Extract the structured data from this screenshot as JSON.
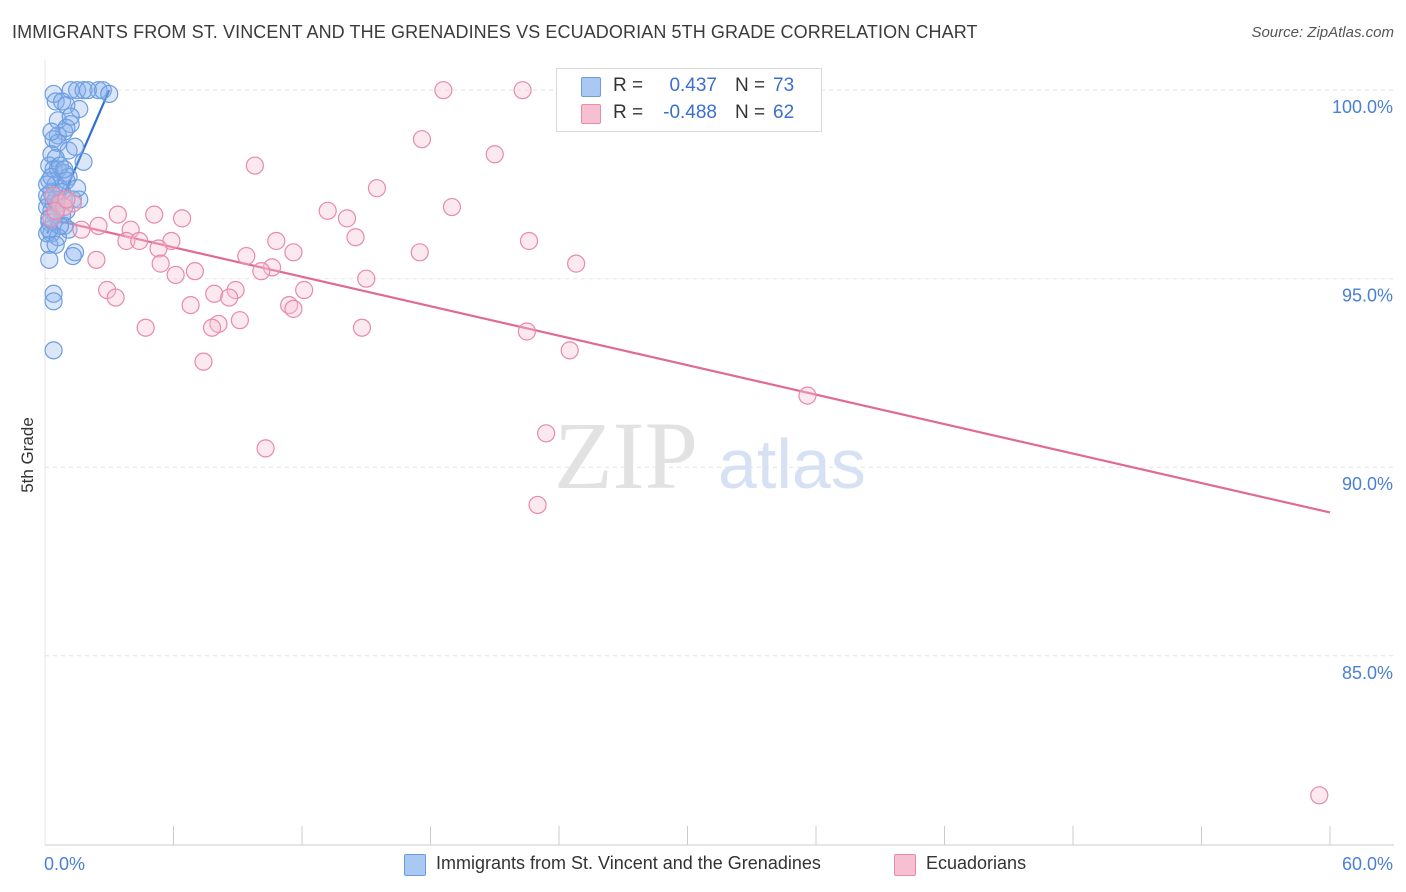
{
  "title": "IMMIGRANTS FROM ST. VINCENT AND THE GRENADINES VS ECUADORIAN 5TH GRADE CORRELATION CHART",
  "source": "Source: ZipAtlas.com",
  "watermark": {
    "zip": "ZIP",
    "atlas": "atlas"
  },
  "legend": {
    "rows": [
      {
        "r_label": "R =",
        "r_value": "0.437",
        "n_label": "N =",
        "n_value": "73",
        "color": "#a9c8f2",
        "border": "#6b9de0"
      },
      {
        "r_label": "R =",
        "r_value": "-0.488",
        "n_label": "N =",
        "n_value": "62",
        "color": "#f7c0d2",
        "border": "#e88aa8"
      }
    ]
  },
  "bottom_legend": [
    {
      "label": "Immigrants from St. Vincent and the Grenadines",
      "color": "#a9c8f2",
      "border": "#6b9de0"
    },
    {
      "label": "Ecuadorians",
      "color": "#f7c0d2",
      "border": "#e88aa8"
    }
  ],
  "chart_data": {
    "type": "scatter",
    "title": "IMMIGRANTS FROM ST. VINCENT AND THE GRENADINES VS ECUADORIAN 5TH GRADE CORRELATION CHART",
    "xlabel": "",
    "ylabel": "5th Grade",
    "xlim": [
      0,
      60
    ],
    "ylim": [
      80.3,
      100.8
    ],
    "x_tick_labels": [
      "0.0%",
      "60.0%"
    ],
    "y_ticks": [
      100,
      95,
      90,
      85
    ],
    "y_tick_labels": [
      "100.0%",
      "95.0%",
      "90.0%",
      "85.0%"
    ],
    "grid": true,
    "series": [
      {
        "name": "Immigrants from St. Vincent and the Grenadines",
        "color": "#6b9de0",
        "fill": "rgba(135,175,235,0.30)",
        "trend": {
          "x": [
            0.1,
            3.0
          ],
          "y": [
            96.2,
            100.0
          ],
          "color": "#2f6fd2"
        },
        "points": [
          [
            0.4,
            99.9
          ],
          [
            1.2,
            100.0
          ],
          [
            1.5,
            100.0
          ],
          [
            1.8,
            100.0
          ],
          [
            2.5,
            100.0
          ],
          [
            2.7,
            100.0
          ],
          [
            3.0,
            99.9
          ],
          [
            0.5,
            99.7
          ],
          [
            0.8,
            99.7
          ],
          [
            1.0,
            99.6
          ],
          [
            1.6,
            99.5
          ],
          [
            0.6,
            99.2
          ],
          [
            1.2,
            99.1
          ],
          [
            0.9,
            98.9
          ],
          [
            0.6,
            98.8
          ],
          [
            0.4,
            98.7
          ],
          [
            0.6,
            98.6
          ],
          [
            1.1,
            98.4
          ],
          [
            0.3,
            98.3
          ],
          [
            0.5,
            98.2
          ],
          [
            1.8,
            98.1
          ],
          [
            0.2,
            98.0
          ],
          [
            0.4,
            97.9
          ],
          [
            0.6,
            97.9
          ],
          [
            0.9,
            97.8
          ],
          [
            1.1,
            97.7
          ],
          [
            0.2,
            97.6
          ],
          [
            0.5,
            97.5
          ],
          [
            0.7,
            97.4
          ],
          [
            0.3,
            97.3
          ],
          [
            0.1,
            97.2
          ],
          [
            0.2,
            97.1
          ],
          [
            0.4,
            97.0
          ],
          [
            0.6,
            97.0
          ],
          [
            0.9,
            97.1
          ],
          [
            1.3,
            97.1
          ],
          [
            1.6,
            97.1
          ],
          [
            0.1,
            96.9
          ],
          [
            0.3,
            96.8
          ],
          [
            0.5,
            96.7
          ],
          [
            0.8,
            96.7
          ],
          [
            0.2,
            96.5
          ],
          [
            0.4,
            96.5
          ],
          [
            0.9,
            96.4
          ],
          [
            1.1,
            96.3
          ],
          [
            0.1,
            96.2
          ],
          [
            0.3,
            96.2
          ],
          [
            0.6,
            96.1
          ],
          [
            0.2,
            95.9
          ],
          [
            0.5,
            95.9
          ],
          [
            1.4,
            95.7
          ],
          [
            1.3,
            95.6
          ],
          [
            0.2,
            95.5
          ],
          [
            0.4,
            94.6
          ],
          [
            0.4,
            94.4
          ],
          [
            0.4,
            93.1
          ],
          [
            1.0,
            99.0
          ],
          [
            1.4,
            98.5
          ],
          [
            0.7,
            98.0
          ],
          [
            1.0,
            97.6
          ],
          [
            0.3,
            97.7
          ],
          [
            0.8,
            97.3
          ],
          [
            1.5,
            97.4
          ],
          [
            0.2,
            96.6
          ],
          [
            0.7,
            96.4
          ],
          [
            0.3,
            98.9
          ],
          [
            1.2,
            99.3
          ],
          [
            2.0,
            100.0
          ],
          [
            0.9,
            97.9
          ],
          [
            0.1,
            97.5
          ],
          [
            0.5,
            97.1
          ],
          [
            0.2,
            96.3
          ],
          [
            1.0,
            96.8
          ]
        ]
      },
      {
        "name": "Ecuadorians",
        "color": "#e88aa8",
        "fill": "rgba(247,192,210,0.35)",
        "trend": {
          "x": [
            0.1,
            60.0
          ],
          "y": [
            96.6,
            88.8
          ],
          "color": "#e06a94"
        },
        "points": [
          [
            18.6,
            100.0
          ],
          [
            22.3,
            100.0
          ],
          [
            17.6,
            98.7
          ],
          [
            21.0,
            98.3
          ],
          [
            9.8,
            98.0
          ],
          [
            15.5,
            97.4
          ],
          [
            0.4,
            97.2
          ],
          [
            0.7,
            97.0
          ],
          [
            1.3,
            97.0
          ],
          [
            19.0,
            96.9
          ],
          [
            0.9,
            96.9
          ],
          [
            3.4,
            96.7
          ],
          [
            5.1,
            96.7
          ],
          [
            6.4,
            96.6
          ],
          [
            13.2,
            96.8
          ],
          [
            14.1,
            96.6
          ],
          [
            0.3,
            96.6
          ],
          [
            1.7,
            96.3
          ],
          [
            2.5,
            96.4
          ],
          [
            4.0,
            96.3
          ],
          [
            3.8,
            96.0
          ],
          [
            4.4,
            96.0
          ],
          [
            5.9,
            96.0
          ],
          [
            10.8,
            96.0
          ],
          [
            14.5,
            96.1
          ],
          [
            22.6,
            96.0
          ],
          [
            5.3,
            95.8
          ],
          [
            9.4,
            95.6
          ],
          [
            11.6,
            95.7
          ],
          [
            17.5,
            95.7
          ],
          [
            2.4,
            95.5
          ],
          [
            5.4,
            95.4
          ],
          [
            10.6,
            95.3
          ],
          [
            24.8,
            95.4
          ],
          [
            6.1,
            95.1
          ],
          [
            7.0,
            95.2
          ],
          [
            10.1,
            95.2
          ],
          [
            15.0,
            95.0
          ],
          [
            2.9,
            94.7
          ],
          [
            7.9,
            94.6
          ],
          [
            8.9,
            94.7
          ],
          [
            12.1,
            94.7
          ],
          [
            3.3,
            94.5
          ],
          [
            8.6,
            94.5
          ],
          [
            6.8,
            94.3
          ],
          [
            11.4,
            94.3
          ],
          [
            11.6,
            94.2
          ],
          [
            8.1,
            93.8
          ],
          [
            9.1,
            93.9
          ],
          [
            14.8,
            93.7
          ],
          [
            4.7,
            93.7
          ],
          [
            7.8,
            93.7
          ],
          [
            22.5,
            93.6
          ],
          [
            24.5,
            93.1
          ],
          [
            7.4,
            92.8
          ],
          [
            35.6,
            91.9
          ],
          [
            23.4,
            90.9
          ],
          [
            10.3,
            90.5
          ],
          [
            23.0,
            89.0
          ],
          [
            59.5,
            81.3
          ],
          [
            0.5,
            96.8
          ],
          [
            1.0,
            97.1
          ]
        ]
      }
    ]
  }
}
